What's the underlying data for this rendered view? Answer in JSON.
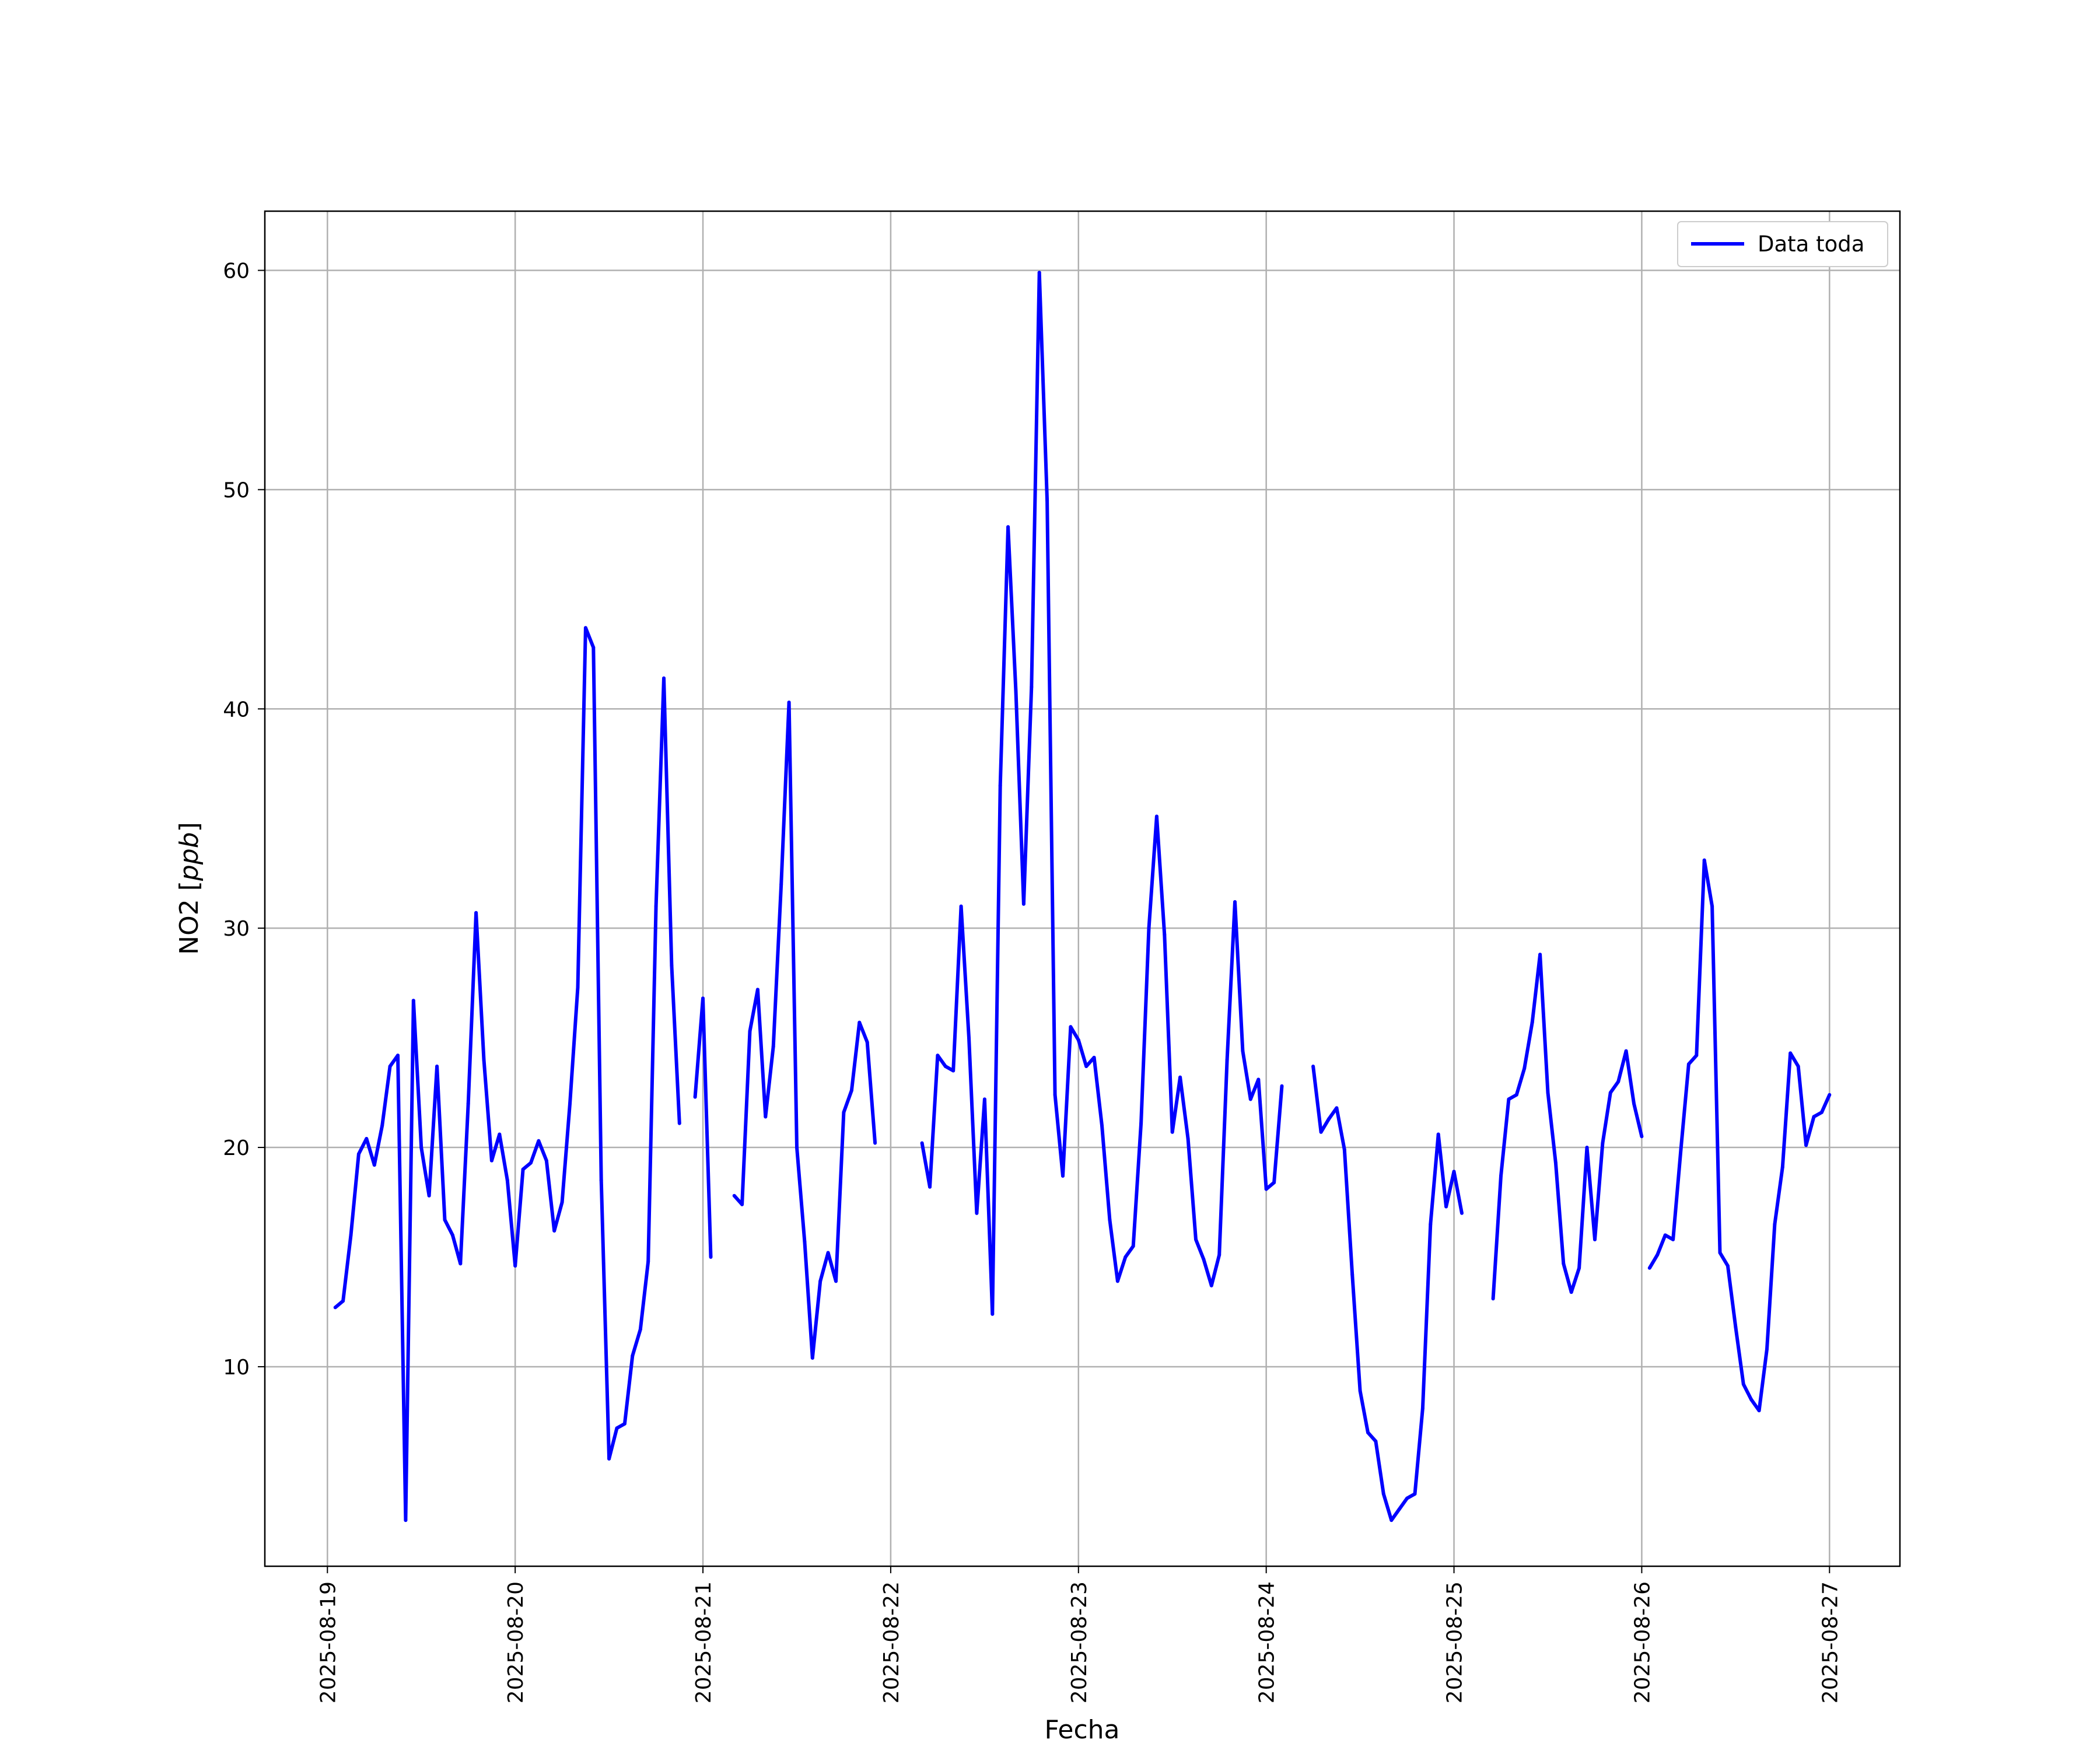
{
  "chart_data": {
    "type": "line",
    "xlabel": "Fecha",
    "ylabel": "NO2 [",
    "ylabel_unit": "ppb",
    "ylabel_close": "]",
    "xlim": [
      "2025-08-18 16:00",
      "2025-08-27 09:00"
    ],
    "ylim": [
      0.9,
      62.7
    ],
    "x_ticks": [
      "2025-08-19",
      "2025-08-20",
      "2025-08-21",
      "2025-08-22",
      "2025-08-23",
      "2025-08-24",
      "2025-08-25",
      "2025-08-26",
      "2025-08-27"
    ],
    "y_ticks": [
      10,
      20,
      30,
      40,
      50,
      60
    ],
    "grid": true,
    "legend_position": "top-right",
    "series": [
      {
        "name": "Data toda",
        "color": "#0000ff",
        "segments": [
          [
            [
              "2025-08-19 01:00",
              12.7
            ],
            [
              "2025-08-19 02:00",
              13.0
            ],
            [
              "2025-08-19 03:00",
              16.0
            ],
            [
              "2025-08-19 04:00",
              19.7
            ],
            [
              "2025-08-19 05:00",
              20.4
            ],
            [
              "2025-08-19 06:00",
              19.2
            ],
            [
              "2025-08-19 07:00",
              21.0
            ],
            [
              "2025-08-19 08:00",
              23.7
            ],
            [
              "2025-08-19 09:00",
              24.2
            ],
            [
              "2025-08-19 10:00",
              3.0
            ],
            [
              "2025-08-19 11:00",
              26.7
            ],
            [
              "2025-08-19 12:00",
              20.0
            ],
            [
              "2025-08-19 13:00",
              17.8
            ],
            [
              "2025-08-19 14:00",
              23.7
            ],
            [
              "2025-08-19 15:00",
              16.7
            ],
            [
              "2025-08-19 16:00",
              16.0
            ],
            [
              "2025-08-19 17:00",
              14.7
            ],
            [
              "2025-08-19 18:00",
              22.0
            ],
            [
              "2025-08-19 19:00",
              30.7
            ],
            [
              "2025-08-19 20:00",
              24.0
            ],
            [
              "2025-08-19 21:00",
              19.4
            ],
            [
              "2025-08-19 22:00",
              20.6
            ],
            [
              "2025-08-19 23:00",
              18.5
            ],
            [
              "2025-08-20 00:00",
              14.6
            ],
            [
              "2025-08-20 01:00",
              19.0
            ],
            [
              "2025-08-20 02:00",
              19.3
            ],
            [
              "2025-08-20 03:00",
              20.3
            ],
            [
              "2025-08-20 04:00",
              19.4
            ],
            [
              "2025-08-20 05:00",
              16.2
            ],
            [
              "2025-08-20 06:00",
              17.5
            ],
            [
              "2025-08-20 07:00",
              22.0
            ],
            [
              "2025-08-20 08:00",
              27.3
            ],
            [
              "2025-08-20 09:00",
              43.7
            ],
            [
              "2025-08-20 10:00",
              42.8
            ],
            [
              "2025-08-20 11:00",
              18.5
            ],
            [
              "2025-08-20 12:00",
              5.8
            ],
            [
              "2025-08-20 13:00",
              7.2
            ],
            [
              "2025-08-20 14:00",
              7.4
            ],
            [
              "2025-08-20 15:00",
              10.5
            ],
            [
              "2025-08-20 16:00",
              11.7
            ],
            [
              "2025-08-20 17:00",
              14.8
            ],
            [
              "2025-08-20 18:00",
              31.0
            ],
            [
              "2025-08-20 19:00",
              41.4
            ],
            [
              "2025-08-20 20:00",
              28.3
            ],
            [
              "2025-08-20 21:00",
              21.1
            ]
          ],
          [
            [
              "2025-08-20 23:00",
              22.3
            ],
            [
              "2025-08-21 00:00",
              26.8
            ],
            [
              "2025-08-21 01:00",
              15.0
            ]
          ],
          [
            [
              "2025-08-21 04:00",
              17.8
            ],
            [
              "2025-08-21 05:00",
              17.4
            ],
            [
              "2025-08-21 06:00",
              25.3
            ],
            [
              "2025-08-21 07:00",
              27.2
            ],
            [
              "2025-08-21 08:00",
              21.4
            ],
            [
              "2025-08-21 09:00",
              24.6
            ],
            [
              "2025-08-21 10:00",
              32.0
            ],
            [
              "2025-08-21 11:00",
              40.3
            ],
            [
              "2025-08-21 12:00",
              20.0
            ],
            [
              "2025-08-21 13:00",
              15.7
            ],
            [
              "2025-08-21 14:00",
              10.4
            ],
            [
              "2025-08-21 15:00",
              13.9
            ],
            [
              "2025-08-21 16:00",
              15.2
            ],
            [
              "2025-08-21 17:00",
              13.9
            ],
            [
              "2025-08-21 18:00",
              21.6
            ],
            [
              "2025-08-21 19:00",
              22.6
            ],
            [
              "2025-08-21 20:00",
              25.7
            ],
            [
              "2025-08-21 21:00",
              24.8
            ],
            [
              "2025-08-21 22:00",
              20.2
            ]
          ],
          [
            [
              "2025-08-22 04:00",
              20.2
            ],
            [
              "2025-08-22 05:00",
              18.2
            ],
            [
              "2025-08-22 06:00",
              24.2
            ],
            [
              "2025-08-22 07:00",
              23.7
            ],
            [
              "2025-08-22 08:00",
              23.5
            ],
            [
              "2025-08-22 09:00",
              31.0
            ],
            [
              "2025-08-22 10:00",
              25.0
            ],
            [
              "2025-08-22 11:00",
              17.0
            ],
            [
              "2025-08-22 12:00",
              22.2
            ],
            [
              "2025-08-22 13:00",
              12.4
            ],
            [
              "2025-08-22 14:00",
              36.5
            ],
            [
              "2025-08-22 15:00",
              48.3
            ],
            [
              "2025-08-22 16:00",
              40.8
            ],
            [
              "2025-08-22 17:00",
              31.1
            ],
            [
              "2025-08-22 18:00",
              41.0
            ],
            [
              "2025-08-22 19:00",
              59.9
            ],
            [
              "2025-08-22 20:00",
              49.5
            ],
            [
              "2025-08-22 21:00",
              22.4
            ],
            [
              "2025-08-22 22:00",
              18.7
            ],
            [
              "2025-08-22 23:00",
              25.5
            ],
            [
              "2025-08-23 00:00",
              24.9
            ],
            [
              "2025-08-23 01:00",
              23.7
            ],
            [
              "2025-08-23 02:00",
              24.1
            ],
            [
              "2025-08-23 03:00",
              21.0
            ],
            [
              "2025-08-23 04:00",
              16.7
            ],
            [
              "2025-08-23 05:00",
              13.9
            ],
            [
              "2025-08-23 06:00",
              15.0
            ],
            [
              "2025-08-23 07:00",
              15.5
            ],
            [
              "2025-08-23 08:00",
              21.1
            ],
            [
              "2025-08-23 09:00",
              30.0
            ],
            [
              "2025-08-23 10:00",
              35.1
            ],
            [
              "2025-08-23 11:00",
              29.7
            ],
            [
              "2025-08-23 12:00",
              20.7
            ],
            [
              "2025-08-23 13:00",
              23.2
            ],
            [
              "2025-08-23 14:00",
              20.4
            ],
            [
              "2025-08-23 15:00",
              15.8
            ],
            [
              "2025-08-23 16:00",
              14.9
            ],
            [
              "2025-08-23 17:00",
              13.7
            ],
            [
              "2025-08-23 18:00",
              15.1
            ],
            [
              "2025-08-23 19:00",
              24.0
            ],
            [
              "2025-08-23 20:00",
              31.2
            ],
            [
              "2025-08-23 21:00",
              24.4
            ],
            [
              "2025-08-23 22:00",
              22.2
            ],
            [
              "2025-08-23 23:00",
              23.1
            ],
            [
              "2025-08-24 00:00",
              18.1
            ],
            [
              "2025-08-24 01:00",
              18.4
            ],
            [
              "2025-08-24 02:00",
              22.8
            ]
          ],
          [
            [
              "2025-08-24 06:00",
              23.7
            ],
            [
              "2025-08-24 07:00",
              20.7
            ],
            [
              "2025-08-24 08:00",
              21.3
            ],
            [
              "2025-08-24 09:00",
              21.8
            ],
            [
              "2025-08-24 10:00",
              19.9
            ],
            [
              "2025-08-24 11:00",
              14.2
            ],
            [
              "2025-08-24 12:00",
              8.9
            ],
            [
              "2025-08-24 13:00",
              7.0
            ],
            [
              "2025-08-24 14:00",
              6.6
            ],
            [
              "2025-08-24 15:00",
              4.2
            ],
            [
              "2025-08-24 16:00",
              3.0
            ],
            [
              "2025-08-24 17:00",
              3.5
            ],
            [
              "2025-08-24 18:00",
              4.0
            ],
            [
              "2025-08-24 19:00",
              4.2
            ],
            [
              "2025-08-24 20:00",
              8.1
            ],
            [
              "2025-08-24 21:00",
              16.5
            ],
            [
              "2025-08-24 22:00",
              20.6
            ],
            [
              "2025-08-24 23:00",
              17.3
            ],
            [
              "2025-08-25 00:00",
              18.9
            ],
            [
              "2025-08-25 01:00",
              17.0
            ]
          ],
          [
            [
              "2025-08-25 05:00",
              13.1
            ],
            [
              "2025-08-25 06:00",
              18.7
            ],
            [
              "2025-08-25 07:00",
              22.2
            ],
            [
              "2025-08-25 08:00",
              22.4
            ],
            [
              "2025-08-25 09:00",
              23.6
            ],
            [
              "2025-08-25 10:00",
              25.7
            ],
            [
              "2025-08-25 11:00",
              28.8
            ],
            [
              "2025-08-25 12:00",
              22.5
            ],
            [
              "2025-08-25 13:00",
              19.3
            ],
            [
              "2025-08-25 14:00",
              14.7
            ],
            [
              "2025-08-25 15:00",
              13.4
            ],
            [
              "2025-08-25 16:00",
              14.5
            ],
            [
              "2025-08-25 17:00",
              20.0
            ],
            [
              "2025-08-25 18:00",
              15.8
            ],
            [
              "2025-08-25 19:00",
              20.2
            ],
            [
              "2025-08-25 20:00",
              22.5
            ],
            [
              "2025-08-25 21:00",
              23.0
            ],
            [
              "2025-08-25 22:00",
              24.4
            ],
            [
              "2025-08-25 23:00",
              22.0
            ],
            [
              "2025-08-26 00:00",
              20.5
            ]
          ],
          [
            [
              "2025-08-26 01:00",
              14.5
            ],
            [
              "2025-08-26 02:00",
              15.1
            ],
            [
              "2025-08-26 03:00",
              16.0
            ],
            [
              "2025-08-26 04:00",
              15.8
            ],
            [
              "2025-08-26 05:00",
              19.9
            ],
            [
              "2025-08-26 06:00",
              23.8
            ],
            [
              "2025-08-26 07:00",
              24.2
            ],
            [
              "2025-08-26 08:00",
              33.1
            ],
            [
              "2025-08-26 09:00",
              31.0
            ],
            [
              "2025-08-26 10:00",
              15.2
            ],
            [
              "2025-08-26 11:00",
              14.6
            ],
            [
              "2025-08-26 12:00",
              11.8
            ],
            [
              "2025-08-26 13:00",
              9.2
            ],
            [
              "2025-08-26 14:00",
              8.5
            ],
            [
              "2025-08-26 15:00",
              8.0
            ],
            [
              "2025-08-26 16:00",
              10.8
            ],
            [
              "2025-08-26 17:00",
              16.5
            ],
            [
              "2025-08-26 18:00",
              19.1
            ],
            [
              "2025-08-26 19:00",
              24.3
            ],
            [
              "2025-08-26 20:00",
              23.7
            ],
            [
              "2025-08-26 21:00",
              20.1
            ],
            [
              "2025-08-26 22:00",
              21.4
            ],
            [
              "2025-08-26 23:00",
              21.6
            ],
            [
              "2025-08-27 00:00",
              22.4
            ]
          ]
        ]
      }
    ]
  }
}
